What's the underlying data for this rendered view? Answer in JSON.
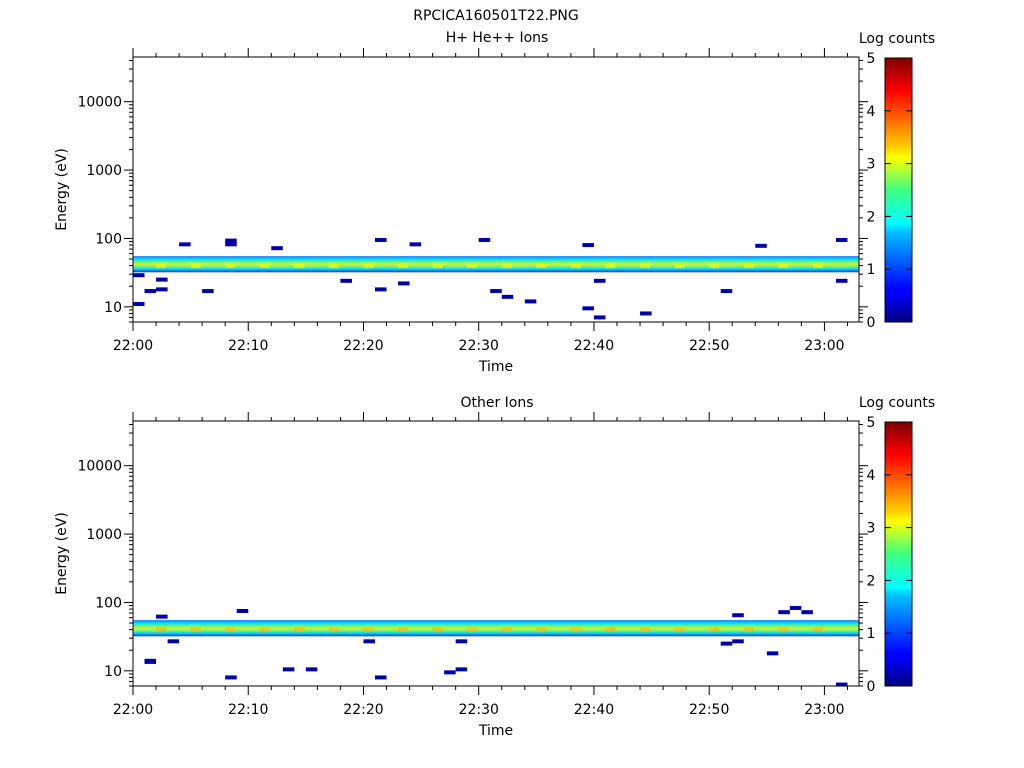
{
  "figure_title": "RPCICA160501T22.PNG",
  "chart_data": [
    {
      "type": "heatmap",
      "title": "H+ He++ Ions",
      "xlabel": "Time",
      "ylabel": "Energy (eV)",
      "x_ticks": [
        "22:00",
        "22:10",
        "22:20",
        "22:30",
        "22:40",
        "22:50",
        "23:00"
      ],
      "xlim": [
        "22:00",
        "23:03"
      ],
      "y_scale": "log",
      "ylim": [
        6,
        45000
      ],
      "y_ticks": [
        10,
        100,
        1000,
        10000
      ],
      "y_tick_labels": [
        "10",
        "100",
        "1000",
        "10000"
      ],
      "colorbar": {
        "label": "Log counts",
        "range": [
          0,
          5
        ],
        "ticks": [
          "0",
          "1",
          "2",
          "3",
          "4",
          "5"
        ],
        "colormap": "jet"
      },
      "dominant_band": {
        "energy_min_eV": 32,
        "energy_max_eV": 55,
        "peak_energy_eV": 40,
        "peak_log_counts": 3.1
      },
      "isolated_counts": [
        {
          "t": "22:00",
          "energy_eV": 11,
          "log_counts": 0.2
        },
        {
          "t": "22:00",
          "energy_eV": 29,
          "log_counts": 0.2
        },
        {
          "t": "22:01",
          "energy_eV": 17,
          "log_counts": 0.2
        },
        {
          "t": "22:02",
          "energy_eV": 25,
          "log_counts": 0.2
        },
        {
          "t": "22:02",
          "energy_eV": 18,
          "log_counts": 0.2
        },
        {
          "t": "22:04",
          "energy_eV": 82,
          "log_counts": 0.2
        },
        {
          "t": "22:06",
          "energy_eV": 17,
          "log_counts": 0.2
        },
        {
          "t": "22:08",
          "energy_eV": 93,
          "log_counts": 0.2
        },
        {
          "t": "22:08",
          "energy_eV": 82,
          "log_counts": 0.2
        },
        {
          "t": "22:12",
          "energy_eV": 72,
          "log_counts": 0.2
        },
        {
          "t": "22:18",
          "energy_eV": 24,
          "log_counts": 0.2
        },
        {
          "t": "22:21",
          "energy_eV": 95,
          "log_counts": 0.2
        },
        {
          "t": "22:21",
          "energy_eV": 18,
          "log_counts": 0.2
        },
        {
          "t": "22:23",
          "energy_eV": 22,
          "log_counts": 0.2
        },
        {
          "t": "22:24",
          "energy_eV": 82,
          "log_counts": 0.2
        },
        {
          "t": "22:30",
          "energy_eV": 95,
          "log_counts": 0.2
        },
        {
          "t": "22:31",
          "energy_eV": 17,
          "log_counts": 0.2
        },
        {
          "t": "22:32",
          "energy_eV": 14,
          "log_counts": 0.2
        },
        {
          "t": "22:34",
          "energy_eV": 12,
          "log_counts": 0.2
        },
        {
          "t": "22:39",
          "energy_eV": 80,
          "log_counts": 0.2
        },
        {
          "t": "22:39",
          "energy_eV": 9.5,
          "log_counts": 0.2
        },
        {
          "t": "22:40",
          "energy_eV": 7,
          "log_counts": 0.2
        },
        {
          "t": "22:40",
          "energy_eV": 24,
          "log_counts": 0.2
        },
        {
          "t": "22:44",
          "energy_eV": 8,
          "log_counts": 0.2
        },
        {
          "t": "22:51",
          "energy_eV": 17,
          "log_counts": 0.2
        },
        {
          "t": "22:54",
          "energy_eV": 78,
          "log_counts": 0.2
        },
        {
          "t": "23:01",
          "energy_eV": 95,
          "log_counts": 0.2
        },
        {
          "t": "23:01",
          "energy_eV": 24,
          "log_counts": 0.2
        }
      ]
    },
    {
      "type": "heatmap",
      "title": "Other Ions",
      "xlabel": "Time",
      "ylabel": "Energy (eV)",
      "x_ticks": [
        "22:00",
        "22:10",
        "22:20",
        "22:30",
        "22:40",
        "22:50",
        "23:00"
      ],
      "xlim": [
        "22:00",
        "23:03"
      ],
      "y_scale": "log",
      "ylim": [
        6,
        45000
      ],
      "y_ticks": [
        10,
        100,
        1000,
        10000
      ],
      "y_tick_labels": [
        "10",
        "100",
        "1000",
        "10000"
      ],
      "colorbar": {
        "label": "Log counts",
        "range": [
          0,
          5
        ],
        "ticks": [
          "0",
          "1",
          "2",
          "3",
          "4",
          "5"
        ],
        "colormap": "jet"
      },
      "dominant_band": {
        "energy_min_eV": 32,
        "energy_max_eV": 55,
        "peak_energy_eV": 40,
        "peak_log_counts": 3.5
      },
      "isolated_counts": [
        {
          "t": "22:01",
          "energy_eV": 14,
          "log_counts": 0.2
        },
        {
          "t": "22:01",
          "energy_eV": 13.5,
          "log_counts": 0.2
        },
        {
          "t": "22:02",
          "energy_eV": 62,
          "log_counts": 0.2
        },
        {
          "t": "22:03",
          "energy_eV": 27,
          "log_counts": 0.2
        },
        {
          "t": "22:08",
          "energy_eV": 8,
          "log_counts": 0.2
        },
        {
          "t": "22:09",
          "energy_eV": 75,
          "log_counts": 0.2
        },
        {
          "t": "22:13",
          "energy_eV": 10.5,
          "log_counts": 0.2
        },
        {
          "t": "22:15",
          "energy_eV": 10.5,
          "log_counts": 0.2
        },
        {
          "t": "22:20",
          "energy_eV": 27,
          "log_counts": 0.2
        },
        {
          "t": "22:21",
          "energy_eV": 8,
          "log_counts": 0.2
        },
        {
          "t": "22:27",
          "energy_eV": 9.5,
          "log_counts": 0.2
        },
        {
          "t": "22:28",
          "energy_eV": 10.5,
          "log_counts": 0.2
        },
        {
          "t": "22:28",
          "energy_eV": 27,
          "log_counts": 0.2
        },
        {
          "t": "22:51",
          "energy_eV": 25,
          "log_counts": 0.2
        },
        {
          "t": "22:52",
          "energy_eV": 65,
          "log_counts": 0.2
        },
        {
          "t": "22:52",
          "energy_eV": 27,
          "log_counts": 0.2
        },
        {
          "t": "22:55",
          "energy_eV": 18,
          "log_counts": 0.2
        },
        {
          "t": "22:56",
          "energy_eV": 72,
          "log_counts": 0.2
        },
        {
          "t": "22:57",
          "energy_eV": 83,
          "log_counts": 0.2
        },
        {
          "t": "22:58",
          "energy_eV": 72,
          "log_counts": 0.2
        },
        {
          "t": "23:01",
          "energy_eV": 6.3,
          "log_counts": 0.2
        }
      ]
    }
  ]
}
